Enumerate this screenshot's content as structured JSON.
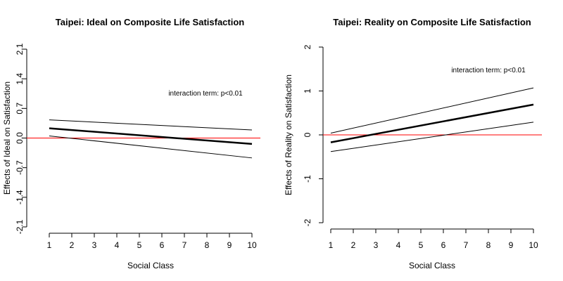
{
  "chart_data": [
    {
      "type": "line",
      "title": "Taipei: Ideal on Composite Life Satisfaction",
      "xlabel": "Social Class",
      "ylabel": "Effects of Ideal on Satisfaction",
      "x": [
        1,
        2,
        3,
        4,
        5,
        6,
        7,
        8,
        9,
        10
      ],
      "xlim": [
        1,
        10
      ],
      "ylim": [
        -2.1,
        2.1
      ],
      "yticks": [
        "-2.1",
        "-1.4",
        "-0.7",
        "0.0",
        "0.7",
        "1.4",
        "2.1"
      ],
      "xticks": [
        "1",
        "2",
        "3",
        "4",
        "5",
        "6",
        "7",
        "8",
        "9",
        "10"
      ],
      "reference_line": {
        "y": 0,
        "color": "#ff0000"
      },
      "annotation": "interaction term: p<0.01",
      "series": [
        {
          "role": "upper",
          "x": [
            1,
            10
          ],
          "values": [
            0.43,
            0.19
          ],
          "width": 1
        },
        {
          "role": "estimate",
          "x": [
            1,
            10
          ],
          "values": [
            0.23,
            -0.14
          ],
          "width": 2.5
        },
        {
          "role": "lower",
          "x": [
            1,
            10
          ],
          "values": [
            0.05,
            -0.47
          ],
          "width": 1
        }
      ]
    },
    {
      "type": "line",
      "title": "Taipei: Reality on Composite Life Satisfaction",
      "xlabel": "Social Class",
      "ylabel": "Effects of Reality on Satisfaction",
      "x": [
        1,
        2,
        3,
        4,
        5,
        6,
        7,
        8,
        9,
        10
      ],
      "xlim": [
        1,
        10
      ],
      "ylim": [
        -2,
        2
      ],
      "yticks": [
        "-2",
        "-1",
        "0",
        "1",
        "2"
      ],
      "xticks": [
        "1",
        "2",
        "3",
        "4",
        "5",
        "6",
        "7",
        "8",
        "9",
        "10"
      ],
      "reference_line": {
        "y": 0,
        "color": "#ff0000"
      },
      "annotation": "interaction term: p<0.01",
      "series": [
        {
          "role": "upper",
          "x": [
            1,
            10
          ],
          "values": [
            0.04,
            1.07
          ],
          "width": 1
        },
        {
          "role": "estimate",
          "x": [
            1,
            10
          ],
          "values": [
            -0.17,
            0.69
          ],
          "width": 2.5
        },
        {
          "role": "lower",
          "x": [
            1,
            10
          ],
          "values": [
            -0.38,
            0.29
          ],
          "width": 1
        }
      ]
    }
  ]
}
